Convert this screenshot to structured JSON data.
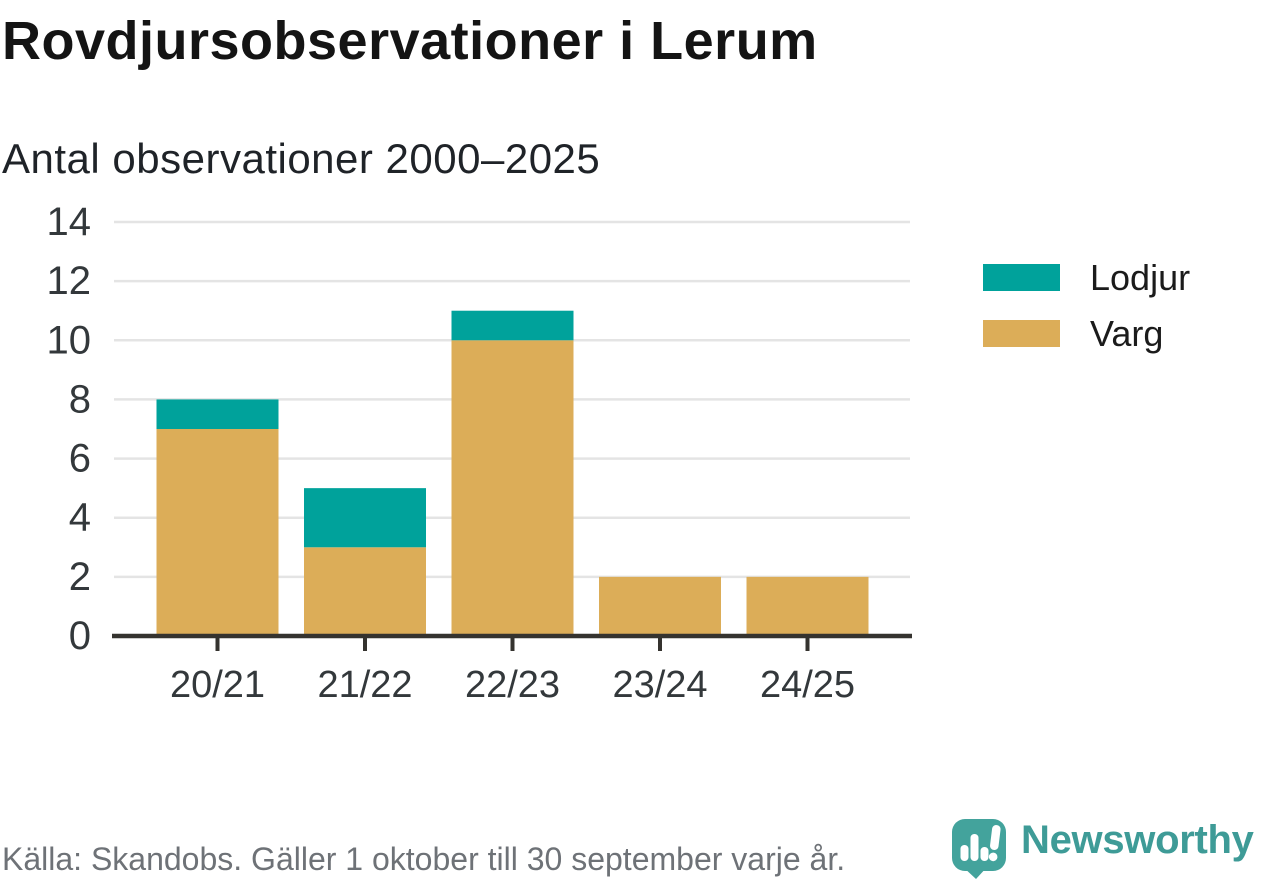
{
  "chart_data": {
    "type": "bar",
    "stacked": true,
    "title": "Rovdjursobservationer i Lerum",
    "subtitle": "Antal observationer 2000–2025",
    "categories": [
      "20/21",
      "21/22",
      "22/23",
      "23/24",
      "24/25"
    ],
    "series": [
      {
        "name": "Varg",
        "color": "#DCAD58",
        "values": [
          7,
          3,
          10,
          2,
          2
        ]
      },
      {
        "name": "Lodjur",
        "color": "#00A29B",
        "values": [
          1,
          2,
          1,
          0,
          0
        ]
      }
    ],
    "ylim": [
      0,
      14
    ],
    "yticks": [
      0,
      2,
      4,
      6,
      8,
      10,
      12,
      14
    ],
    "grid": "horizontal",
    "legend_position": "right",
    "gridline_color": "#E4E4E4",
    "axis_color": "#35332F",
    "tick_label_color": "#33383B"
  },
  "legend": {
    "items": [
      {
        "label": "Lodjur",
        "color": "#00A29B"
      },
      {
        "label": "Varg",
        "color": "#DCAD58"
      }
    ]
  },
  "footer": {
    "source_text": "Källa: Skandobs. Gäller 1 oktober till 30 september varje år."
  },
  "branding": {
    "name": "Newsworthy",
    "text_color": "#3E9B97",
    "icon_color": "#43A39C",
    "icon": "newsworthy-speech-bubble-bar-chart-icon"
  }
}
